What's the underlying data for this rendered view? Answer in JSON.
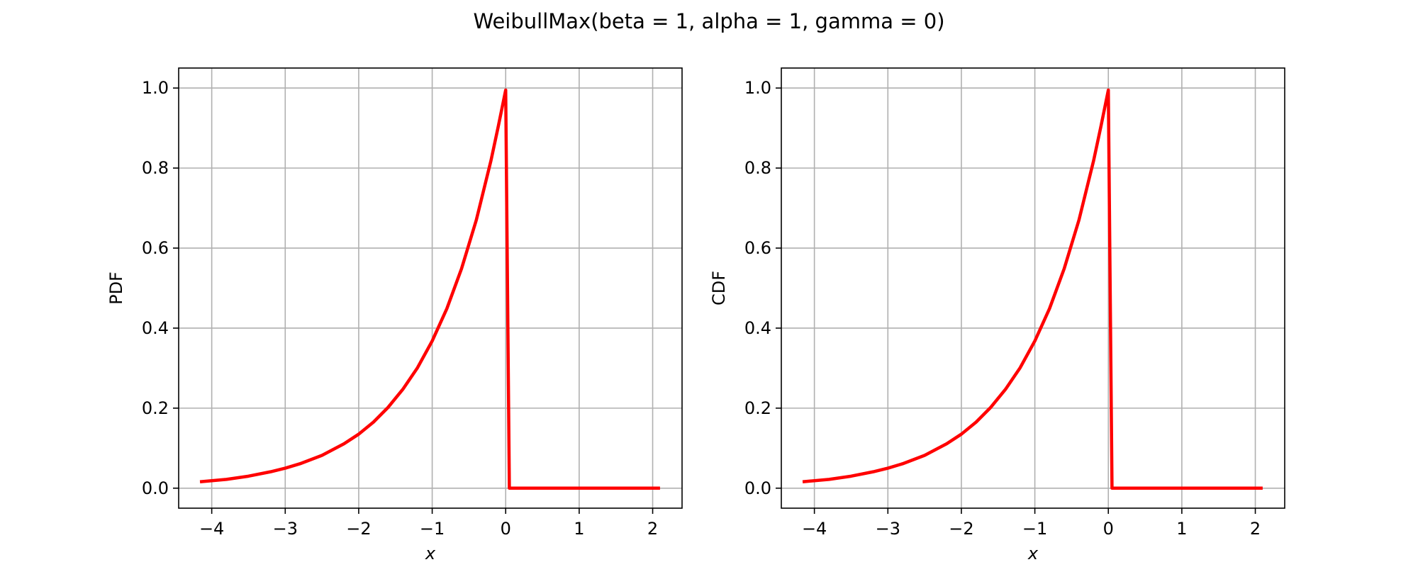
{
  "figure": {
    "title": "WeibullMax(beta = 1, alpha = 1, gamma = 0)"
  },
  "chart_data": [
    {
      "type": "line",
      "title": "",
      "xlabel": "x",
      "ylabel": "PDF",
      "xlim": [
        -4.45,
        2.4
      ],
      "ylim": [
        -0.05,
        1.05
      ],
      "xticks": [
        -4,
        -3,
        -2,
        -1,
        0,
        1,
        2
      ],
      "xtick_labels": [
        "−4",
        "−3",
        "−2",
        "−1",
        "0",
        "1",
        "2"
      ],
      "yticks": [
        0.0,
        0.2,
        0.4,
        0.6,
        0.8,
        1.0
      ],
      "ytick_labels": [
        "0.0",
        "0.2",
        "0.4",
        "0.6",
        "0.8",
        "1.0"
      ],
      "grid": true,
      "series": [
        {
          "color": "#ff0000",
          "x": [
            -4.16,
            -3.8,
            -3.5,
            -3.2,
            -3.0,
            -2.8,
            -2.5,
            -2.2,
            -2.0,
            -1.8,
            -1.6,
            -1.4,
            -1.2,
            -1.0,
            -0.8,
            -0.6,
            -0.4,
            -0.2,
            -0.1,
            0.0,
            0.05,
            0.5,
            1.0,
            1.5,
            2.1
          ],
          "y": [
            0.016,
            0.022,
            0.03,
            0.041,
            0.05,
            0.061,
            0.082,
            0.111,
            0.135,
            0.165,
            0.202,
            0.247,
            0.301,
            0.368,
            0.449,
            0.549,
            0.67,
            0.819,
            0.905,
            0.995,
            0.0,
            0.0,
            0.0,
            0.0,
            0.0
          ]
        }
      ]
    },
    {
      "type": "line",
      "title": "",
      "xlabel": "x",
      "ylabel": "CDF",
      "xlim": [
        -4.45,
        2.4
      ],
      "ylim": [
        -0.05,
        1.05
      ],
      "xticks": [
        -4,
        -3,
        -2,
        -1,
        0,
        1,
        2
      ],
      "xtick_labels": [
        "−4",
        "−3",
        "−2",
        "−1",
        "0",
        "1",
        "2"
      ],
      "yticks": [
        0.0,
        0.2,
        0.4,
        0.6,
        0.8,
        1.0
      ],
      "ytick_labels": [
        "0.0",
        "0.2",
        "0.4",
        "0.6",
        "0.8",
        "1.0"
      ],
      "grid": true,
      "series": [
        {
          "color": "#ff0000",
          "x": [
            -4.16,
            -3.8,
            -3.5,
            -3.2,
            -3.0,
            -2.8,
            -2.5,
            -2.2,
            -2.0,
            -1.8,
            -1.6,
            -1.4,
            -1.2,
            -1.0,
            -0.8,
            -0.6,
            -0.4,
            -0.2,
            -0.1,
            0.0,
            0.05,
            0.5,
            1.0,
            1.5,
            2.1
          ],
          "y": [
            0.016,
            0.022,
            0.03,
            0.041,
            0.05,
            0.061,
            0.082,
            0.111,
            0.135,
            0.165,
            0.202,
            0.247,
            0.301,
            0.368,
            0.449,
            0.549,
            0.67,
            0.819,
            0.905,
            0.995,
            0.0,
            0.0,
            0.0,
            0.0,
            0.0
          ]
        }
      ]
    }
  ]
}
